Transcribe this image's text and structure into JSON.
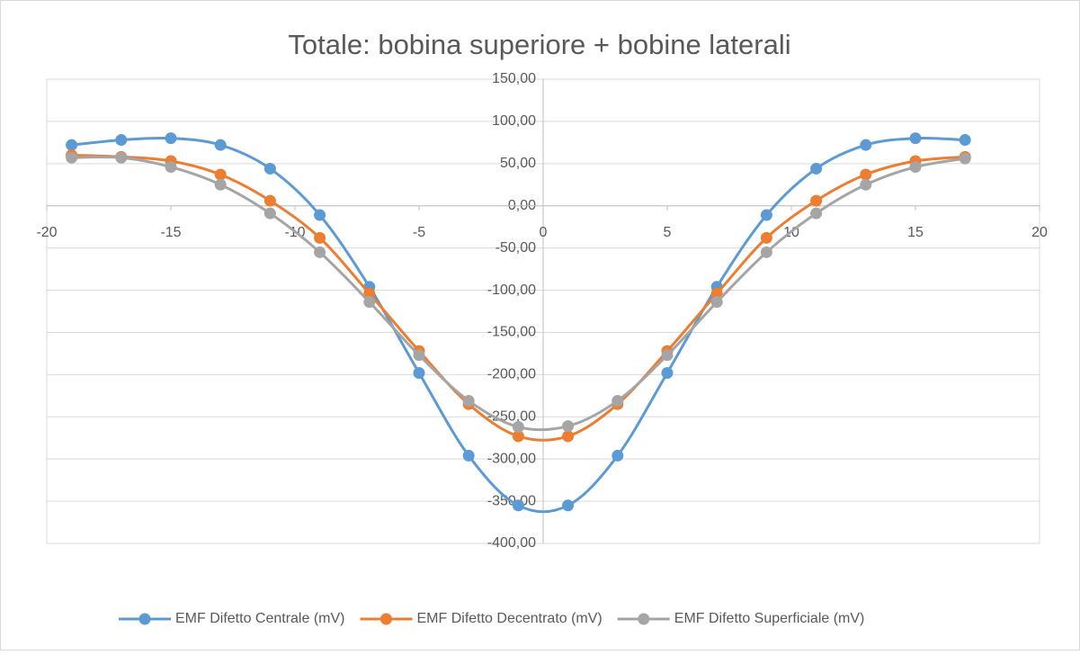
{
  "chart_data": {
    "type": "scatter",
    "title": "Totale: bobina superiore + bobine laterali",
    "x": [
      -19,
      -17,
      -15,
      -13,
      -11,
      -9,
      -7,
      -5,
      -3,
      -1,
      1,
      3,
      5,
      7,
      9,
      11,
      13,
      15,
      17
    ],
    "series": [
      {
        "name": "EMF Difetto Centrale (mV)",
        "color": "#5b9bd5",
        "values": [
          72,
          78,
          80,
          72,
          44,
          -11,
          -96,
          -198,
          -296,
          -355,
          -355,
          -296,
          -198,
          -96,
          -11,
          44,
          72,
          80,
          78
        ]
      },
      {
        "name": "EMF Difetto Decentrato (mV)",
        "color": "#ed7d31",
        "values": [
          60,
          58,
          53,
          37,
          6,
          -38,
          -104,
          -172,
          -235,
          -273,
          -273,
          -235,
          -172,
          -104,
          -38,
          6,
          37,
          53,
          58
        ]
      },
      {
        "name": "EMF Difetto Superficiale (mV)",
        "color": "#a5a5a5",
        "values": [
          57,
          57,
          46,
          25,
          -9,
          -55,
          -114,
          -177,
          -231,
          -262,
          -261,
          -231,
          -177,
          -114,
          -55,
          -9,
          25,
          46,
          56
        ]
      }
    ],
    "xlim": [
      -20,
      20
    ],
    "xticks": [
      -20,
      -15,
      -10,
      -5,
      0,
      5,
      10,
      15,
      20
    ],
    "ylim": [
      -400,
      150
    ],
    "yticks": [
      {
        "value": 150,
        "label": "150,00"
      },
      {
        "value": 100,
        "label": "100,00"
      },
      {
        "value": 50,
        "label": "50,00"
      },
      {
        "value": 0,
        "label": "0,00"
      },
      {
        "value": -50,
        "label": "-50,00"
      },
      {
        "value": -100,
        "label": "-100,00"
      },
      {
        "value": -150,
        "label": "-150,00"
      },
      {
        "value": -200,
        "label": "-200,00"
      },
      {
        "value": -250,
        "label": "-250,00"
      },
      {
        "value": -300,
        "label": "-300,00"
      },
      {
        "value": -350,
        "label": "-350,00"
      },
      {
        "value": -400,
        "label": "-400,00"
      }
    ],
    "grid": true,
    "smooth": true,
    "legend": "bottom"
  }
}
